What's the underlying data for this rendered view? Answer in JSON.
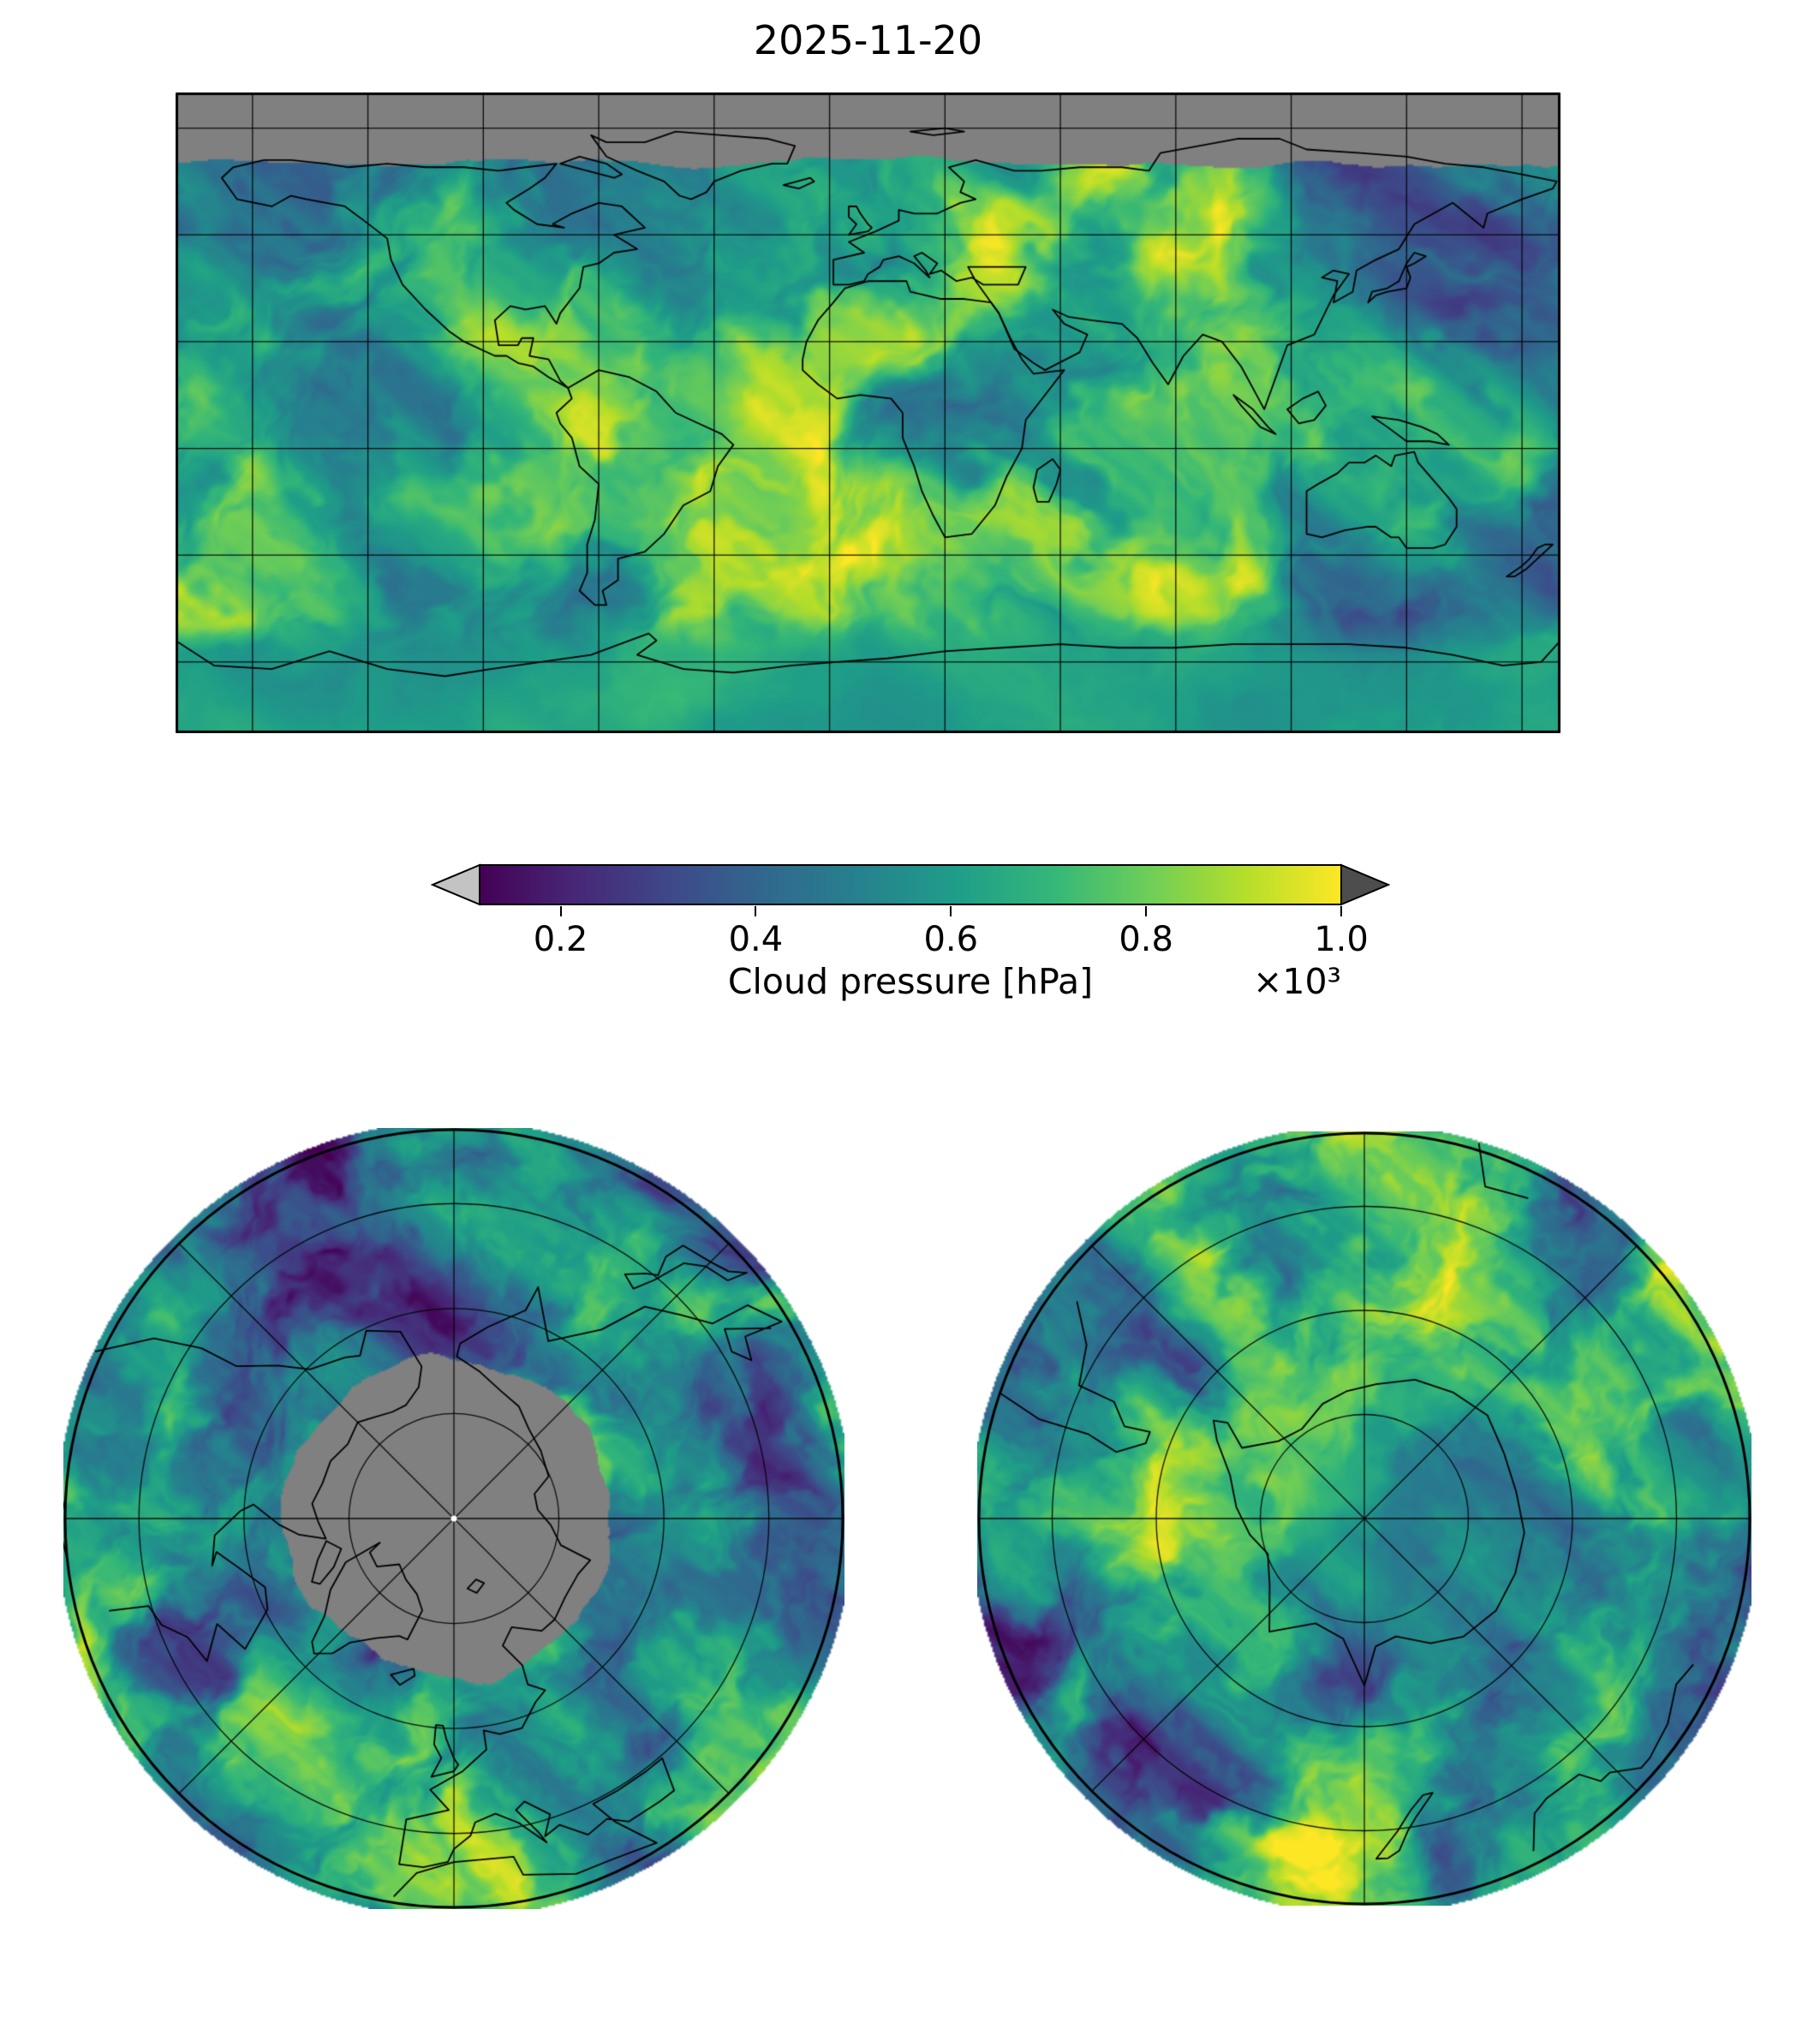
{
  "figure": {
    "title": "2025-11-20",
    "colorbar": {
      "label": "Cloud pressure [hPa]",
      "offset_text": "×10³",
      "tick_labels": [
        "0.2",
        "0.4",
        "0.6",
        "0.8",
        "1.0"
      ],
      "tick_values": [
        0.2,
        0.4,
        0.6,
        0.8,
        1.0
      ],
      "axis_min": 0.117,
      "axis_max": 1.0,
      "colormap": "viridis",
      "extend": "both",
      "under_arrow_color": "#c3c3c3",
      "over_arrow_color": "#4d4d4d"
    },
    "panels": {
      "global": {
        "name": "global map",
        "projection": "equirectangular",
        "no_data_color": "#808080"
      },
      "north": {
        "name": "north polar view",
        "projection": "polar azimuthal (North Pole)",
        "no_data_color": "#808080"
      },
      "south": {
        "name": "south polar view",
        "projection": "polar azimuthal (South Pole)"
      }
    }
  },
  "chart_data": {
    "type": "heatmap",
    "title": "2025-11-20",
    "variable": "Cloud pressure",
    "units": "hPa",
    "colormap": "viridis",
    "colorbar": {
      "label": "Cloud pressure [hPa]",
      "ticks": [
        0.2,
        0.4,
        0.6,
        0.8,
        1.0
      ],
      "scale": "×10³",
      "axis_range": [
        0.117,
        1.0
      ],
      "extend": "both",
      "under_color": "light gray",
      "over_color": "dark gray"
    },
    "panels": [
      {
        "id": "global-equirectangular",
        "projection": "equirectangular",
        "lon_range": [
          -180,
          180
        ],
        "lat_range": [
          -90,
          90
        ],
        "graticule_spacing_deg": 30,
        "no_data": "gray band poleward of ~72N (polar night, no retrieval)"
      },
      {
        "id": "north-polar",
        "projection": "azimuthal about North Pole",
        "outer_latitude_deg": 30,
        "graticule": "latitude circles every 15 deg, meridians every 45 deg",
        "no_data": "gray disc around pole (polar night)"
      },
      {
        "id": "south-polar",
        "projection": "azimuthal about South Pole",
        "outer_latitude_deg": -30,
        "graticule": "latitude circles every 15 deg, meridians every 45 deg"
      }
    ],
    "value_summary": "Cloud pressure field spans roughly 0.1-1.1 ×10³ hPa; mostly 0.6-1.0 (green to yellow) with storm/cloud bands down to 0.2-0.4 (blue to purple); coastlines and graticule overlaid in black."
  }
}
